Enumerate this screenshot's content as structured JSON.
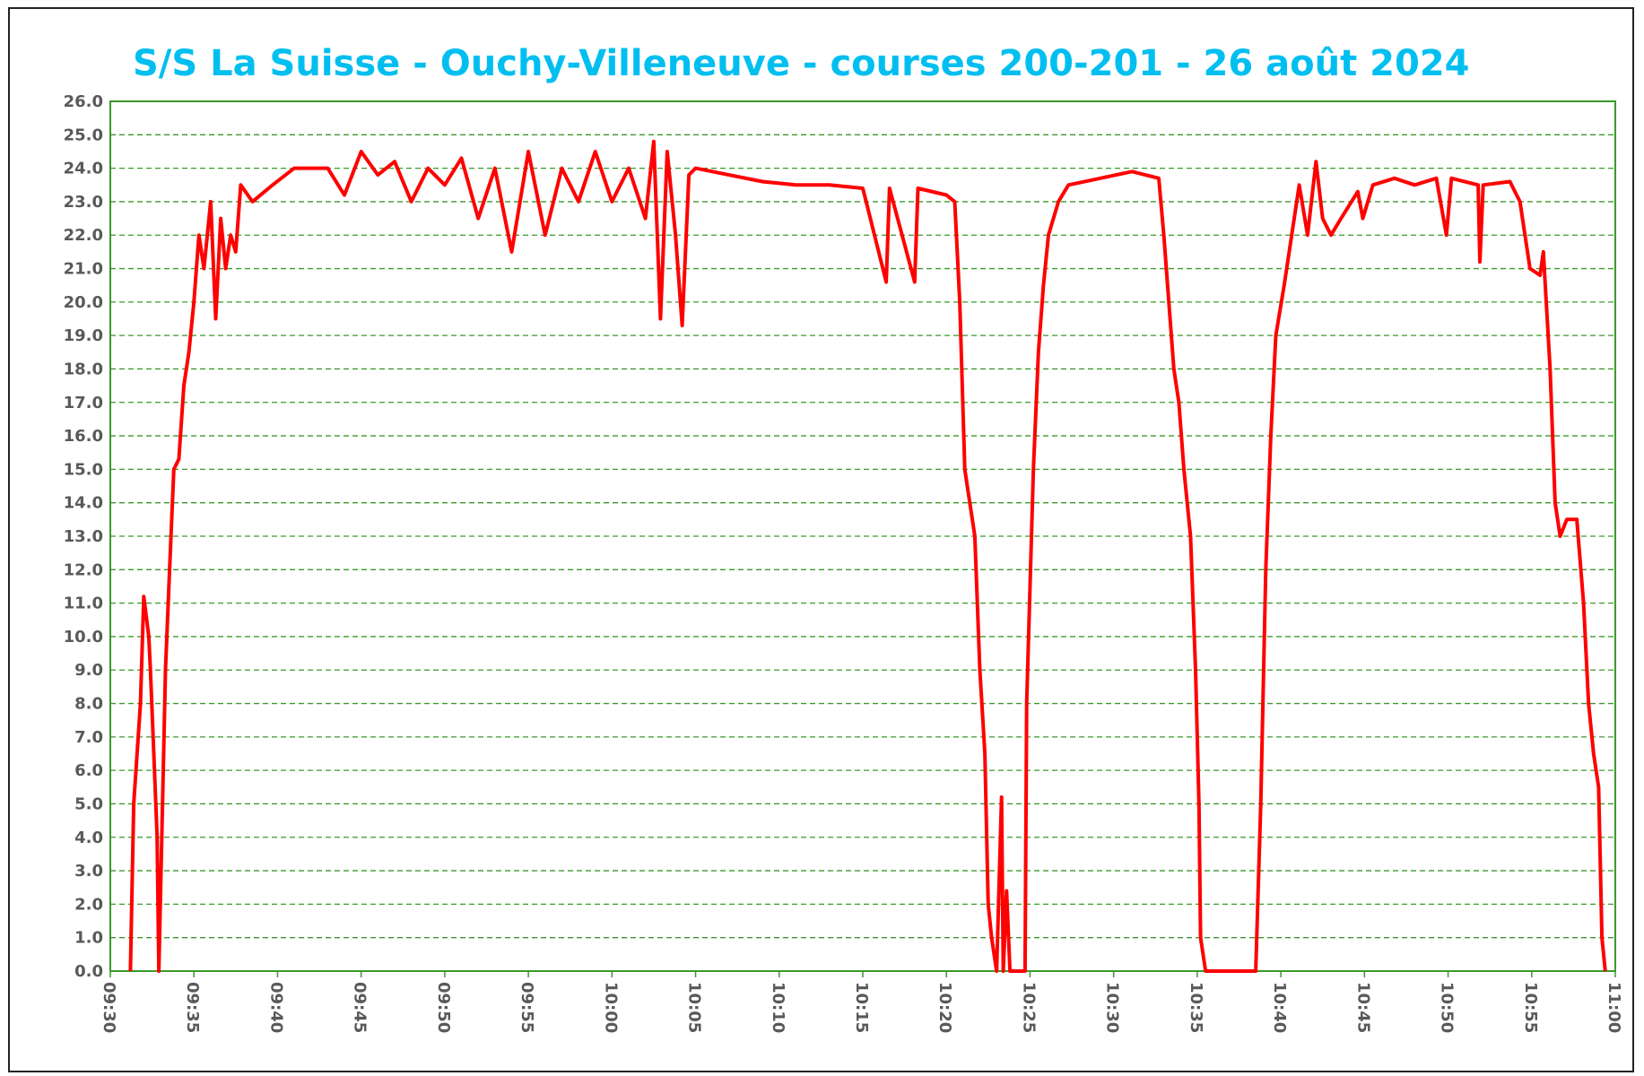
{
  "chart_data": {
    "type": "line",
    "title": "S/S La Suisse - Ouchy-Villeneuve - courses 200-201 - 26 août 2024",
    "xlim": [
      570,
      660
    ],
    "xticks": [
      {
        "value": 570,
        "label": "09:30"
      },
      {
        "value": 575,
        "label": "09:35"
      },
      {
        "value": 580,
        "label": "09:40"
      },
      {
        "value": 585,
        "label": "09:45"
      },
      {
        "value": 590,
        "label": "09:50"
      },
      {
        "value": 595,
        "label": "09:55"
      },
      {
        "value": 600,
        "label": "10:00"
      },
      {
        "value": 605,
        "label": "10:05"
      },
      {
        "value": 610,
        "label": "10:10"
      },
      {
        "value": 615,
        "label": "10:15"
      },
      {
        "value": 620,
        "label": "10:20"
      },
      {
        "value": 625,
        "label": "10:25"
      },
      {
        "value": 630,
        "label": "10:30"
      },
      {
        "value": 635,
        "label": "10:35"
      },
      {
        "value": 640,
        "label": "10:40"
      },
      {
        "value": 645,
        "label": "10:45"
      },
      {
        "value": 650,
        "label": "10:50"
      },
      {
        "value": 655,
        "label": "10:55"
      },
      {
        "value": 660,
        "label": "11:00"
      }
    ],
    "ylim": [
      0,
      26
    ],
    "yticks": [
      {
        "value": 0,
        "label": "0.0"
      },
      {
        "value": 1,
        "label": "1.0"
      },
      {
        "value": 2,
        "label": "2.0"
      },
      {
        "value": 3,
        "label": "3.0"
      },
      {
        "value": 4,
        "label": "4.0"
      },
      {
        "value": 5,
        "label": "5.0"
      },
      {
        "value": 6,
        "label": "6.0"
      },
      {
        "value": 7,
        "label": "7.0"
      },
      {
        "value": 8,
        "label": "8.0"
      },
      {
        "value": 9,
        "label": "9.0"
      },
      {
        "value": 10,
        "label": "10.0"
      },
      {
        "value": 11,
        "label": "11.0"
      },
      {
        "value": 12,
        "label": "12.0"
      },
      {
        "value": 13,
        "label": "13.0"
      },
      {
        "value": 14,
        "label": "14.0"
      },
      {
        "value": 15,
        "label": "15.0"
      },
      {
        "value": 16,
        "label": "16.0"
      },
      {
        "value": 17,
        "label": "17.0"
      },
      {
        "value": 18,
        "label": "18.0"
      },
      {
        "value": 19,
        "label": "19.0"
      },
      {
        "value": 20,
        "label": "20.0"
      },
      {
        "value": 21,
        "label": "21.0"
      },
      {
        "value": 22,
        "label": "22.0"
      },
      {
        "value": 23,
        "label": "23.0"
      },
      {
        "value": 24,
        "label": "24.0"
      },
      {
        "value": 25,
        "label": "25.0"
      },
      {
        "value": 26,
        "label": "26.0"
      }
    ],
    "grid": true,
    "series": [
      {
        "color": "#ff0000",
        "x": [
          571.2,
          571.4,
          571.8,
          572.0,
          572.3,
          572.4,
          572.6,
          572.8,
          572.9,
          573.3,
          573.5,
          573.8,
          574.1,
          574.4,
          574.7,
          575.0,
          575.3,
          575.6,
          576.0,
          576.3,
          576.6,
          576.9,
          577.2,
          577.5,
          577.8,
          578.5,
          579.7,
          581.0,
          582.2,
          583,
          584,
          585,
          586,
          587,
          588,
          589,
          590,
          591,
          592,
          593,
          594,
          595,
          596,
          597,
          598,
          599,
          600,
          601,
          602,
          602.5,
          602.9,
          603.3,
          603.8,
          604.2,
          604.6,
          605,
          607,
          609,
          611,
          613,
          615,
          616.4,
          616.6,
          618.1,
          618.3,
          620,
          620.5,
          620.8,
          621.1,
          621.4,
          621.7,
          622.0,
          622.3,
          622.5,
          622.7,
          623.0,
          623.3,
          623.4,
          623.6,
          623.8,
          624.7,
          624.8,
          625.2,
          625.5,
          625.8,
          626.1,
          626.7,
          627.3,
          629.2,
          631.1,
          632.7,
          633.0,
          633.3,
          633.6,
          633.9,
          634.2,
          634.6,
          634.9,
          635.1,
          635.2,
          635.5,
          638.5,
          638.8,
          639.1,
          639.4,
          639.7,
          640.2,
          640.8,
          641.1,
          641.6,
          642.1,
          642.5,
          643.0,
          643.6,
          644.6,
          644.9,
          645.5,
          646.8,
          648.0,
          649.3,
          649.9,
          650.2,
          651.8,
          651.9,
          652.1,
          653.7,
          654.3,
          654.9,
          655.5,
          655.7,
          656.1,
          656.4,
          656.7,
          657.1,
          657.7,
          658.1,
          658.4,
          658.7,
          659.0,
          659.2,
          659.4
        ],
        "values": [
          0,
          5,
          8,
          11.2,
          10,
          9,
          6.5,
          4,
          0,
          9,
          11.5,
          15,
          15.3,
          17.5,
          18.5,
          20,
          22,
          21,
          23,
          19.5,
          22.5,
          21,
          22,
          21.5,
          23.5,
          23,
          23.5,
          24,
          24,
          24.0,
          23.2,
          24.5,
          23.8,
          24.2,
          23.0,
          24.0,
          23.5,
          24.3,
          22.5,
          24.0,
          21.5,
          24.5,
          22.0,
          24.0,
          23.0,
          24.5,
          23.0,
          24.0,
          22.5,
          24.8,
          19.5,
          24.5,
          22,
          19.3,
          23.8,
          24.0,
          23.8,
          23.6,
          23.5,
          23.5,
          23.4,
          20.6,
          23.4,
          20.6,
          23.4,
          23.2,
          23.0,
          20,
          15,
          14,
          13,
          9,
          6.5,
          2,
          1,
          0,
          5.2,
          0,
          2.4,
          0,
          0,
          8,
          15,
          18.5,
          20.5,
          22,
          23,
          23.5,
          23.7,
          23.9,
          23.7,
          22,
          20,
          18,
          17,
          15,
          13,
          9,
          5,
          1,
          0,
          0,
          5,
          12,
          16,
          19,
          20.5,
          22.5,
          23.5,
          22,
          24.2,
          22.5,
          22,
          22.5,
          23.3,
          22.5,
          23.5,
          23.7,
          23.5,
          23.7,
          22,
          23.7,
          23.5,
          21.2,
          23.5,
          23.6,
          23,
          21,
          20.8,
          21.5,
          18,
          14,
          13,
          13.5,
          13.5,
          11,
          8,
          6.5,
          5.5,
          1,
          0
        ]
      }
    ]
  }
}
